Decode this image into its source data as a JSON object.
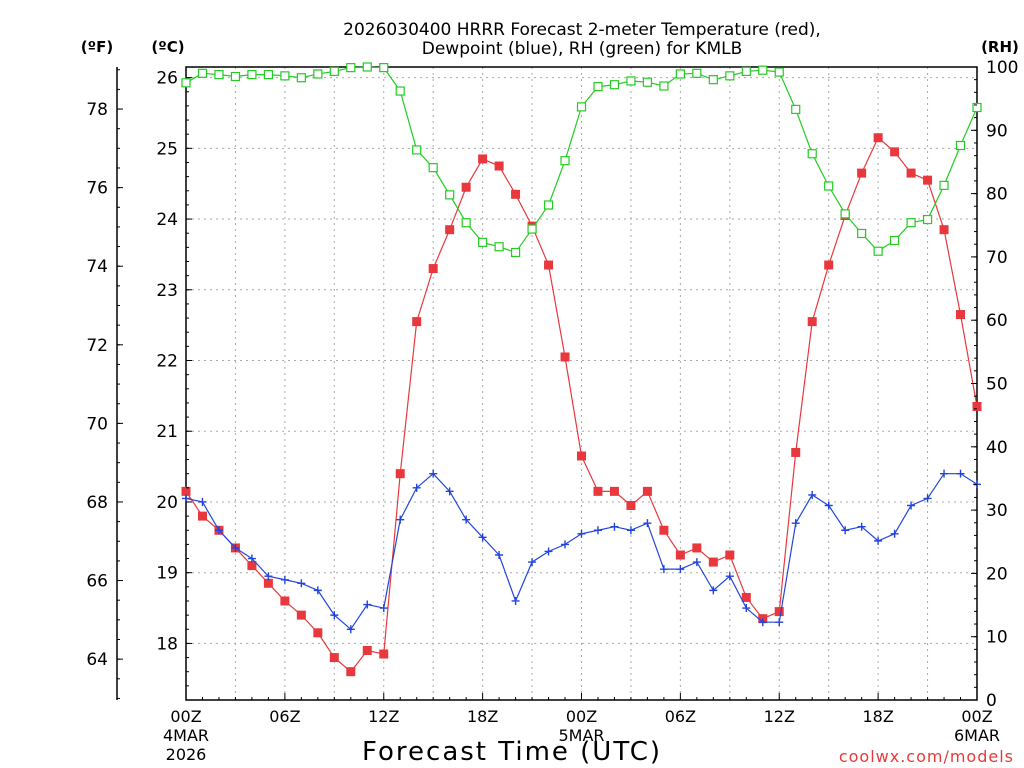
{
  "chart_data": {
    "type": "line",
    "title_line1": "2026030400 HRRR Forecast 2-meter Temperature (red),",
    "title_line2": "Dewpoint (blue), RH (green) for KMLB",
    "xlabel": "Forecast Time (UTC)",
    "watermark": "coolwx.com/models",
    "left_outer_label": "(ºF)",
    "left_inner_label": "(ºC)",
    "right_label": "(RH)",
    "x_range_hours": [
      0,
      48
    ],
    "celsius_range": [
      17.2,
      26.15
    ],
    "rh_range": [
      0,
      100
    ],
    "x_ticks": [
      {
        "hour": 0,
        "label": "00Z",
        "sub1": "4MAR",
        "sub2": "2026"
      },
      {
        "hour": 6,
        "label": "06Z",
        "sub1": "",
        "sub2": ""
      },
      {
        "hour": 12,
        "label": "12Z",
        "sub1": "",
        "sub2": ""
      },
      {
        "hour": 18,
        "label": "18Z",
        "sub1": "",
        "sub2": ""
      },
      {
        "hour": 24,
        "label": "00Z",
        "sub1": "5MAR",
        "sub2": ""
      },
      {
        "hour": 30,
        "label": "06Z",
        "sub1": "",
        "sub2": ""
      },
      {
        "hour": 36,
        "label": "12Z",
        "sub1": "",
        "sub2": ""
      },
      {
        "hour": 42,
        "label": "18Z",
        "sub1": "",
        "sub2": ""
      },
      {
        "hour": 48,
        "label": "00Z",
        "sub1": "6MAR",
        "sub2": ""
      }
    ],
    "celsius_ticks": [
      18,
      19,
      20,
      21,
      22,
      23,
      24,
      25,
      26
    ],
    "fahrenheit_ticks": [
      64,
      66,
      68,
      70,
      72,
      74,
      76,
      78
    ],
    "rh_ticks": [
      0,
      10,
      20,
      30,
      40,
      50,
      60,
      70,
      80,
      90,
      100
    ],
    "series": [
      {
        "name": "Temperature (red)",
        "color": "#e8383d",
        "marker": "filled-square",
        "values": [
          20.15,
          19.8,
          19.6,
          19.35,
          19.1,
          18.85,
          18.6,
          18.4,
          18.15,
          17.8,
          17.6,
          17.9,
          17.85,
          20.4,
          22.55,
          23.3,
          23.85,
          24.45,
          24.85,
          24.75,
          24.35,
          23.9,
          23.35,
          22.05,
          20.65,
          20.15,
          20.15,
          19.95,
          20.15,
          19.6,
          19.25,
          19.35,
          19.15,
          19.25,
          18.65,
          18.35,
          18.45,
          20.7,
          22.55,
          23.35,
          24.05,
          24.65,
          25.15,
          24.95,
          24.65,
          24.55,
          23.85,
          22.65,
          21.35
        ]
      },
      {
        "name": "Dewpoint (blue)",
        "color": "#2244dd",
        "marker": "plus",
        "values": [
          20.05,
          20.0,
          19.6,
          19.35,
          19.2,
          18.95,
          18.9,
          18.85,
          18.75,
          18.4,
          18.2,
          18.55,
          18.5,
          19.75,
          20.2,
          20.4,
          20.15,
          19.75,
          19.5,
          19.25,
          18.6,
          19.15,
          19.3,
          19.4,
          19.55,
          19.6,
          19.65,
          19.6,
          19.7,
          19.05,
          19.05,
          19.15,
          18.75,
          18.95,
          18.5,
          18.3,
          18.3,
          19.7,
          20.1,
          19.95,
          19.6,
          19.65,
          19.45,
          19.55,
          19.95,
          20.05,
          20.4,
          20.4,
          20.25
        ]
      },
      {
        "name": "RH (green)",
        "color": "#22cc22",
        "marker": "open-square",
        "values": [
          97.5,
          99.0,
          98.8,
          98.5,
          98.8,
          98.8,
          98.6,
          98.3,
          98.9,
          99.3,
          99.9,
          100.0,
          99.9,
          96.2,
          86.9,
          84.1,
          79.8,
          75.4,
          72.3,
          71.6,
          70.7,
          74.4,
          78.2,
          85.2,
          93.7,
          96.9,
          97.2,
          97.8,
          97.6,
          97.0,
          98.9,
          99.0,
          98.0,
          98.6,
          99.3,
          99.5,
          99.2,
          93.3,
          86.3,
          81.2,
          76.8,
          73.7,
          70.9,
          72.6,
          75.4,
          75.9,
          81.3,
          87.6,
          93.6
        ]
      }
    ]
  }
}
